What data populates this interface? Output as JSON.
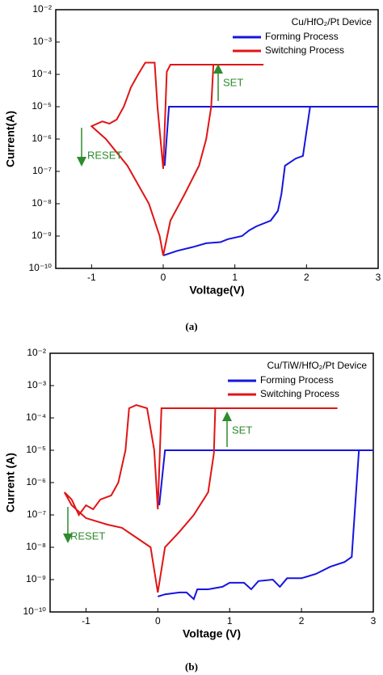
{
  "chart_data": [
    {
      "type": "line",
      "log_y": true,
      "caption": "(a)",
      "x_label": "Voltage(V)",
      "y_label": "Current(A)",
      "legend_title": "Cu/HfO₂/Pt Device",
      "legend": "upper right",
      "xlim": [
        -1.5,
        3
      ],
      "xticks": [
        -1,
        0,
        1,
        2,
        3
      ],
      "ylim": [
        1e-10,
        0.01
      ],
      "yticks": [
        {
          "value": 1e-10,
          "label": "10⁻¹⁰"
        },
        {
          "value": 1e-09,
          "label": "10⁻⁹"
        },
        {
          "value": 1e-08,
          "label": "10⁻⁸"
        },
        {
          "value": 1e-07,
          "label": "10⁻⁷"
        },
        {
          "value": 1e-06,
          "label": "10⁻⁶"
        },
        {
          "value": 1e-05,
          "label": "10⁻⁵"
        },
        {
          "value": 0.0001,
          "label": "10⁻⁴"
        },
        {
          "value": 0.001,
          "label": "10⁻³"
        },
        {
          "value": 0.01,
          "label": "10⁻²"
        }
      ],
      "annotations": [
        "SET",
        "RESET"
      ],
      "series": [
        {
          "name": "Forming Process",
          "color": "#1515e0",
          "x": [
            0,
            0.2,
            0.4,
            0.6,
            0.8,
            0.9,
            1.1,
            1.2,
            1.3,
            1.5,
            1.6,
            1.65,
            1.7,
            1.85,
            1.95,
            2.05,
            null,
            0.02,
            0.08,
            3
          ],
          "values": [
            2.5e-10,
            3.5e-10,
            4.5e-10,
            6e-10,
            6.5e-10,
            8e-10,
            1e-09,
            1.5e-09,
            2e-09,
            3e-09,
            6e-09,
            2e-08,
            1.5e-07,
            2.5e-07,
            3e-07,
            1e-05,
            null,
            1.5e-07,
            1e-05,
            1e-05
          ]
        },
        {
          "name": "Switching Process",
          "color": "#e01515",
          "x": [
            1.4,
            0.1,
            0.05,
            0,
            -0.08,
            -0.12,
            -0.25,
            -0.35,
            -0.45,
            -0.55,
            -0.65,
            -0.75,
            -0.85,
            -1,
            -0.8,
            -0.5,
            -0.2,
            -0.05,
            0,
            0.1,
            0.3,
            0.5,
            0.6,
            0.67,
            0.7
          ],
          "values": [
            0.0002,
            0.0002,
            0.00012,
            1.2e-07,
            1e-05,
            0.00023,
            0.00023,
            0.0001,
            4e-05,
            1e-05,
            4e-06,
            3e-06,
            3.5e-06,
            2.5e-06,
            1e-06,
            1.5e-07,
            1e-08,
            1e-09,
            2.5e-10,
            3e-09,
            2e-08,
            1.5e-07,
            1e-06,
            1e-05,
            0.0002
          ]
        }
      ]
    },
    {
      "type": "line",
      "log_y": true,
      "caption": "(b)",
      "x_label": "Voltage (V)",
      "y_label": "Current (A)",
      "legend_title": "Cu/TiW/HfO₂/Pt Device",
      "legend": "upper right",
      "xlim": [
        -1.5,
        3
      ],
      "xticks": [
        -1,
        0,
        1,
        2,
        3
      ],
      "ylim": [
        1e-10,
        0.01
      ],
      "yticks": [
        {
          "value": 1e-10,
          "label": "10⁻¹⁰"
        },
        {
          "value": 1e-09,
          "label": "10⁻⁹"
        },
        {
          "value": 1e-08,
          "label": "10⁻⁸"
        },
        {
          "value": 1e-07,
          "label": "10⁻⁷"
        },
        {
          "value": 1e-06,
          "label": "10⁻⁶"
        },
        {
          "value": 1e-05,
          "label": "10⁻⁵"
        },
        {
          "value": 0.0001,
          "label": "10⁻⁴"
        },
        {
          "value": 0.001,
          "label": "10⁻³"
        },
        {
          "value": 0.01,
          "label": "10⁻²"
        }
      ],
      "annotations": [
        "SET",
        "RESET"
      ],
      "series": [
        {
          "name": "Forming Process",
          "color": "#1515e0",
          "x": [
            0,
            0.1,
            0.3,
            0.4,
            0.5,
            0.55,
            0.7,
            0.9,
            1,
            1.2,
            1.3,
            1.4,
            1.6,
            1.7,
            1.8,
            2,
            2.2,
            2.4,
            2.6,
            2.7,
            2.8,
            3,
            null,
            0.02,
            0.1,
            3
          ],
          "values": [
            3e-10,
            3.5e-10,
            4e-10,
            4e-10,
            2.5e-10,
            5e-10,
            5e-10,
            6e-10,
            8e-10,
            8e-10,
            5e-10,
            9e-10,
            1e-09,
            6e-10,
            1.1e-09,
            1.1e-09,
            1.5e-09,
            2.5e-09,
            3.5e-09,
            5e-09,
            1e-05,
            1e-05,
            null,
            2e-07,
            1e-05,
            1e-05
          ]
        },
        {
          "name": "Switching Process",
          "color": "#e01515",
          "x": [
            2.5,
            0.1,
            0.05,
            0,
            -0.05,
            -0.15,
            -0.3,
            -0.4,
            -0.45,
            -0.55,
            -0.65,
            -0.8,
            -0.9,
            -1,
            -1.1,
            -1.2,
            -1.3,
            -1.2,
            -1,
            -0.7,
            -0.5,
            -0.3,
            -0.1,
            0,
            0.1,
            0.3,
            0.5,
            0.7,
            0.78,
            0.8
          ],
          "values": [
            0.0002,
            0.0002,
            0.0002,
            1.5e-07,
            1e-05,
            0.0002,
            0.00025,
            0.0002,
            1e-05,
            1e-06,
            4e-07,
            3e-07,
            1.5e-07,
            2e-07,
            1e-07,
            3e-07,
            5e-07,
            2e-07,
            8e-08,
            5e-08,
            4e-08,
            2e-08,
            1e-08,
            4e-10,
            1e-08,
            3e-08,
            1e-07,
            5e-07,
            8e-06,
            0.0002
          ]
        }
      ]
    }
  ]
}
